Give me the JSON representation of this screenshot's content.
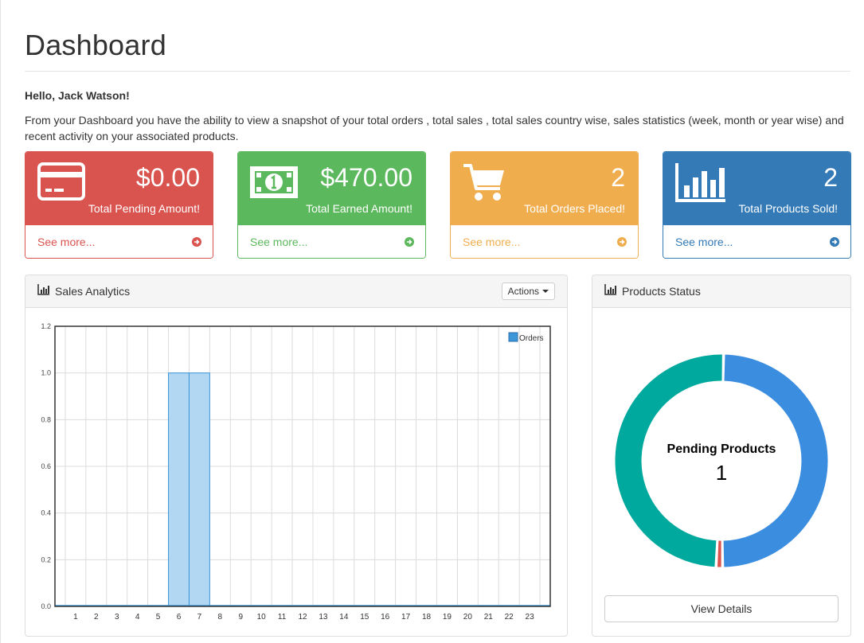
{
  "page": {
    "title": "Dashboard",
    "greeting": "Hello, Jack Watson!",
    "intro": "From your Dashboard you have the ability to view a snapshot of your total orders , total sales , total sales country wise, sales statistics (week, month or year wise) and recent activity on your associated products."
  },
  "cards": [
    {
      "value": "$0.00",
      "label": "Total Pending Amount!",
      "link": "See more...",
      "icon": "credit-card-icon",
      "color": "#d9534f"
    },
    {
      "value": "$470.00",
      "label": "Total Earned Amount!",
      "link": "See more...",
      "icon": "money-icon",
      "color": "#5cb85c"
    },
    {
      "value": "2",
      "label": "Total Orders Placed!",
      "link": "See more...",
      "icon": "shopping-cart-icon",
      "color": "#f0ad4e"
    },
    {
      "value": "2",
      "label": "Total Products Sold!",
      "link": "See more...",
      "icon": "bar-chart-icon",
      "color": "#337ab7"
    }
  ],
  "sales_panel": {
    "title": "Sales Analytics",
    "actions_label": "Actions"
  },
  "products_panel": {
    "title": "Products Status",
    "center_label": "Pending Products",
    "center_value": "1",
    "button_label": "View Details"
  },
  "colors": {
    "bar_fill": "#b1d7f2",
    "bar_stroke": "#3c96d8",
    "donut_blue": "#3b8de0",
    "donut_teal": "#00a99d",
    "donut_red": "#d9534f"
  },
  "chart_data": [
    {
      "type": "bar",
      "categories": [
        "1",
        "2",
        "3",
        "4",
        "5",
        "6",
        "7",
        "8",
        "9",
        "10",
        "11",
        "12",
        "13",
        "14",
        "15",
        "16",
        "17",
        "18",
        "19",
        "20",
        "21",
        "22",
        "23"
      ],
      "series": [
        {
          "name": "Orders",
          "values": [
            0,
            0,
            0,
            0,
            0,
            1,
            1,
            0,
            0,
            0,
            0,
            0,
            0,
            0,
            0,
            0,
            0,
            0,
            0,
            0,
            0,
            0,
            0
          ]
        }
      ],
      "yticks": [
        "0.0",
        "0.2",
        "0.4",
        "0.6",
        "0.8",
        "1.0",
        "1.2"
      ],
      "ylim": [
        0,
        1.2
      ],
      "grid": true,
      "legend": "top-right"
    },
    {
      "type": "pie",
      "series": [
        {
          "values": [
            1,
            0.02,
            1
          ]
        }
      ]
    }
  ]
}
